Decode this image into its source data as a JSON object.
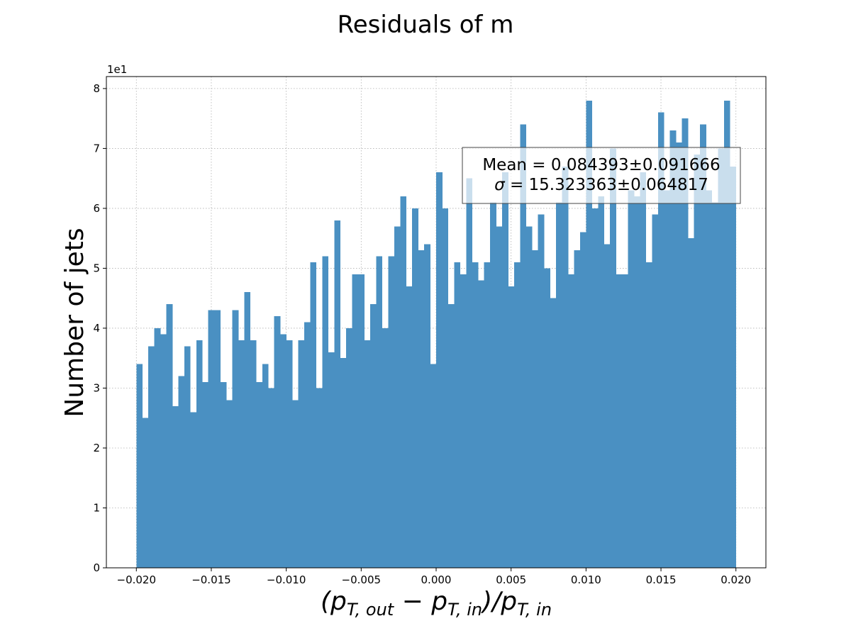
{
  "chart_data": {
    "type": "bar",
    "title": "Residuals of m",
    "xlabel": "(p_T,out − p_T,in)/p_T,in",
    "xlabel_parts": {
      "open": "(p",
      "sub1": "T, out",
      "minus": " − p",
      "sub2": "T, in",
      "mid": ")/p",
      "sub3": "T, in"
    },
    "ylabel": "Number of jets",
    "y_offset_label": "1e1",
    "xlim": [
      -0.022,
      0.022
    ],
    "ylim": [
      0,
      8.2
    ],
    "grid": true,
    "bin_range": [
      -0.02,
      0.02
    ],
    "bin_count": 100,
    "bar_color": "#4a90c2",
    "values": [
      3.4,
      2.5,
      3.7,
      4.0,
      3.9,
      4.4,
      2.7,
      3.2,
      3.7,
      2.6,
      3.8,
      3.1,
      4.3,
      4.3,
      3.1,
      2.8,
      4.3,
      3.8,
      4.6,
      3.8,
      3.1,
      3.4,
      3.0,
      4.2,
      3.9,
      3.8,
      2.8,
      3.8,
      4.1,
      5.1,
      3.0,
      5.2,
      3.6,
      5.8,
      3.5,
      4.0,
      4.9,
      4.9,
      3.8,
      4.4,
      5.2,
      4.0,
      5.2,
      5.7,
      6.2,
      4.7,
      6.0,
      5.3,
      5.4,
      3.4,
      6.6,
      6.0,
      4.4,
      5.1,
      4.9,
      6.5,
      5.1,
      4.8,
      5.1,
      6.1,
      5.7,
      6.6,
      4.7,
      5.1,
      7.4,
      5.7,
      5.3,
      5.9,
      5.0,
      4.5,
      6.1,
      6.7,
      4.9,
      5.3,
      5.6,
      7.8,
      6.0,
      6.2,
      5.4,
      7.0,
      4.9,
      4.9,
      6.3,
      6.2,
      6.6,
      5.1,
      5.9,
      7.6,
      6.3,
      7.3,
      7.1,
      7.5,
      5.5,
      6.9,
      7.4,
      6.3,
      6.1,
      7.0,
      7.8,
      6.7
    ],
    "xticks": [
      {
        "value": -0.02,
        "label": "−0.020"
      },
      {
        "value": -0.015,
        "label": "−0.015"
      },
      {
        "value": -0.01,
        "label": "−0.010"
      },
      {
        "value": -0.005,
        "label": "−0.005"
      },
      {
        "value": 0.0,
        "label": "0.000"
      },
      {
        "value": 0.005,
        "label": "0.005"
      },
      {
        "value": 0.01,
        "label": "0.010"
      },
      {
        "value": 0.015,
        "label": "0.015"
      },
      {
        "value": 0.02,
        "label": "0.020"
      }
    ],
    "yticks": [
      {
        "value": 0,
        "label": "0"
      },
      {
        "value": 1,
        "label": "1"
      },
      {
        "value": 2,
        "label": "2"
      },
      {
        "value": 3,
        "label": "3"
      },
      {
        "value": 4,
        "label": "4"
      },
      {
        "value": 5,
        "label": "5"
      },
      {
        "value": 6,
        "label": "6"
      },
      {
        "value": 7,
        "label": "7"
      },
      {
        "value": 8,
        "label": "8"
      }
    ],
    "annotation": {
      "line1": "Mean = 0.084393±0.091666",
      "line2_symbol": "σ",
      "line2_rest": " = 15.323363±0.064817"
    }
  }
}
